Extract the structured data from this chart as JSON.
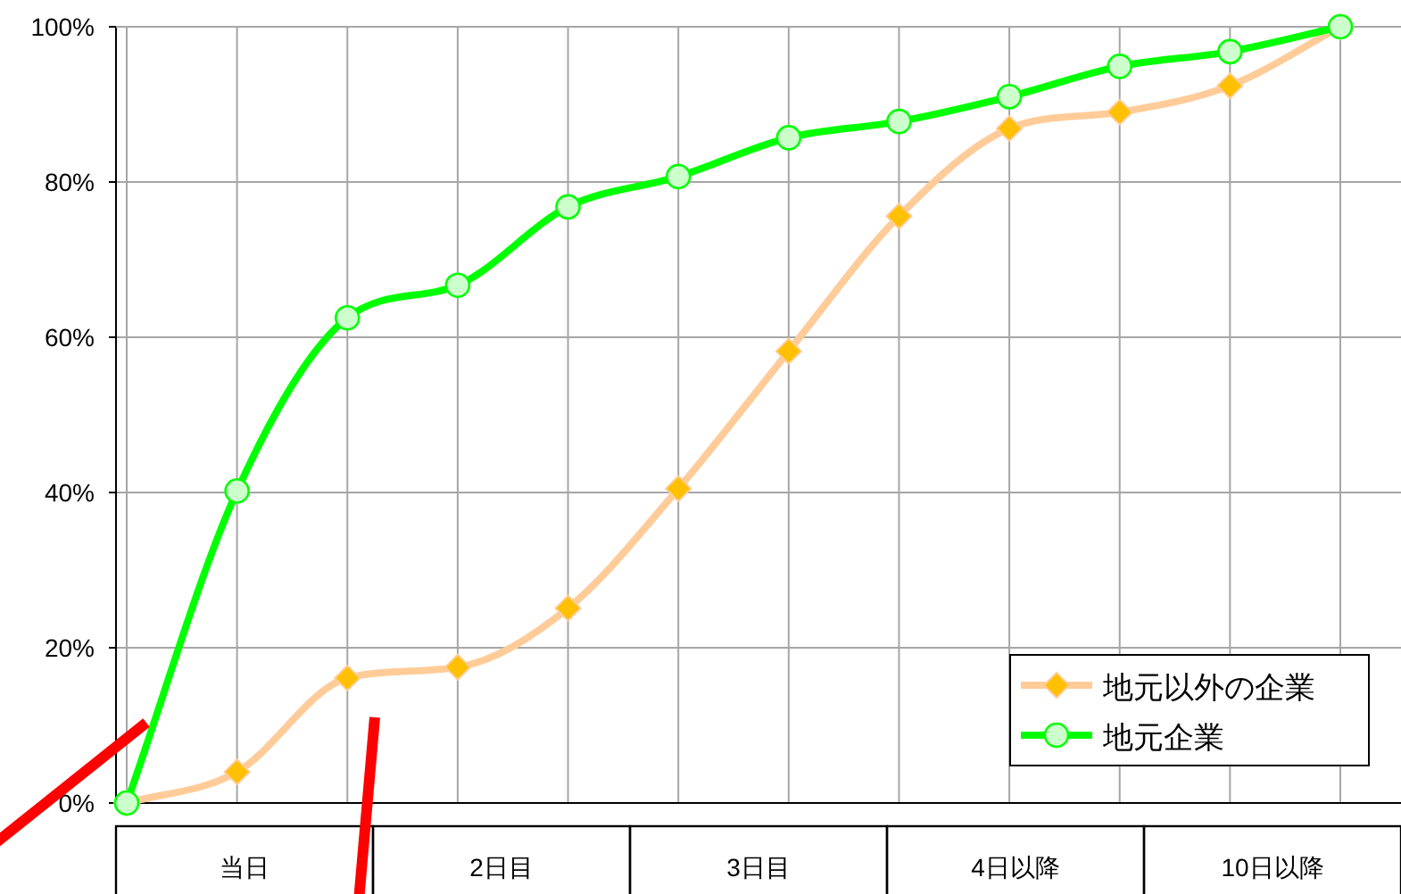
{
  "chart_data": {
    "type": "line",
    "categories": [
      null,
      null,
      null,
      null,
      null,
      null,
      null,
      null,
      null,
      null,
      null,
      null
    ],
    "ylim": [
      0,
      100
    ],
    "yticks": [
      {
        "value": 0,
        "label": "0%"
      },
      {
        "value": 20,
        "label": "20%"
      },
      {
        "value": 40,
        "label": "40%"
      },
      {
        "value": 60,
        "label": "60%"
      },
      {
        "value": 80,
        "label": "80%"
      },
      {
        "value": 100,
        "label": "100%"
      }
    ],
    "grid": true,
    "legend": "bottom right",
    "line_style": "solid",
    "series": [
      {
        "name": "地元以外の企業",
        "color": "#ffcc99",
        "marker": "diamond",
        "colors": [
          "#ffc000",
          "#ffc000",
          "#ffc000",
          "#ffc000",
          "#ffc000",
          "#ffc000",
          "#ffc000",
          "#ffc000",
          "#ffc000",
          "#ffc000",
          "#ffc000",
          "#ffc000"
        ],
        "values": [
          0,
          4,
          16.1,
          17.5,
          25.1,
          40.5,
          58.2,
          75.6,
          86.9,
          89.0,
          92.4,
          100
        ]
      },
      {
        "name": "地元企業",
        "color": "#00ff00",
        "marker": "circle",
        "colors": [
          "#ccffcc",
          "#ccffcc",
          "#ccffcc",
          "#ccffcc",
          "#ccffcc",
          "#ccffcc",
          "#ccffcc",
          "#ccffcc",
          "#ccffcc",
          "#ccffcc",
          "#ccffcc",
          "#ccffcc"
        ],
        "values": [
          0,
          40.2,
          62.5,
          66.7,
          76.8,
          80.7,
          85.7,
          87.8,
          91.0,
          94.9,
          96.8,
          100
        ]
      }
    ],
    "annotations": [
      "当日",
      "2日目",
      "3日目",
      "4日以降",
      "10日以降"
    ]
  }
}
